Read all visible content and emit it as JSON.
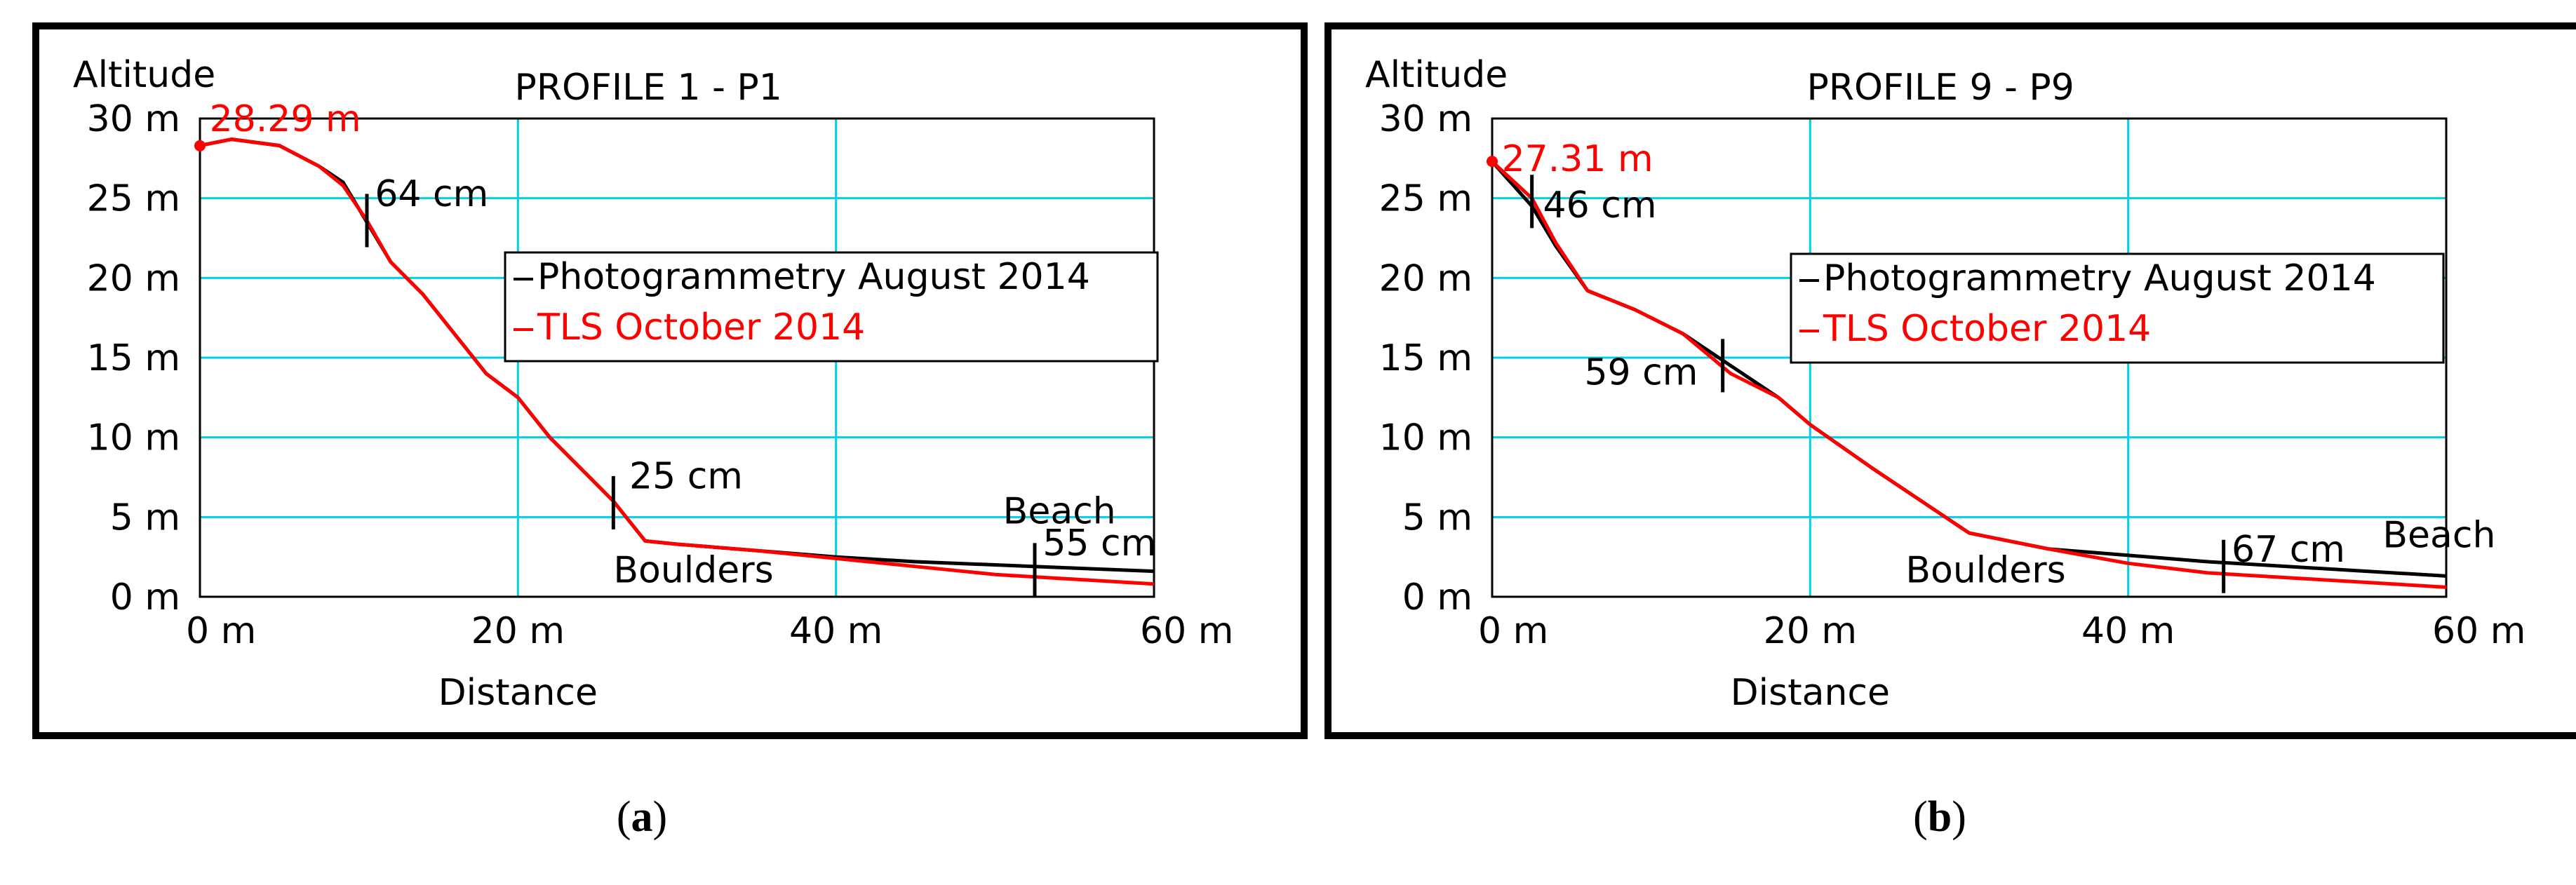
{
  "captions": [
    {
      "open": "(",
      "letter": "a",
      "close": ")"
    },
    {
      "open": "(",
      "letter": "b",
      "close": ")"
    }
  ],
  "colors": {
    "photogrammetry": "#000000",
    "tls": "#ff0000",
    "grid": "#00d0e8",
    "frame": "#000000"
  },
  "chart_data": [
    {
      "type": "line",
      "title": "PROFILE 1 - P1",
      "xlabel": "Distance",
      "ylabel": "Altitude",
      "xlim": [
        0,
        60
      ],
      "ylim": [
        0,
        30
      ],
      "xticks": [
        {
          "v": 0,
          "label": "0 m"
        },
        {
          "v": 20,
          "label": "20 m"
        },
        {
          "v": 40,
          "label": "40 m"
        },
        {
          "v": 60,
          "label": "60 m"
        }
      ],
      "yticks": [
        {
          "v": 0,
          "label": "0 m"
        },
        {
          "v": 5,
          "label": "5 m"
        },
        {
          "v": 10,
          "label": "10 m"
        },
        {
          "v": 15,
          "label": "15 m"
        },
        {
          "v": 20,
          "label": "20 m"
        },
        {
          "v": 25,
          "label": "25 m"
        },
        {
          "v": 30,
          "label": "30 m"
        }
      ],
      "grid": true,
      "legend_position": "upper-right",
      "series": [
        {
          "name": "Photogrammetry August 2014",
          "color": "#000000",
          "points": [
            [
              0,
              28.3
            ],
            [
              2,
              28.7
            ],
            [
              5,
              28.3
            ],
            [
              7.5,
              27
            ],
            [
              9,
              26
            ],
            [
              10.5,
              23.5
            ],
            [
              12,
              21
            ],
            [
              14,
              19
            ],
            [
              16,
              16.5
            ],
            [
              18,
              14
            ],
            [
              20,
              12.5
            ],
            [
              22,
              10
            ],
            [
              24,
              8
            ],
            [
              26,
              6
            ],
            [
              28,
              3.5
            ],
            [
              30,
              3.3
            ],
            [
              35,
              2.9
            ],
            [
              40,
              2.5
            ],
            [
              45,
              2.2
            ],
            [
              50,
              2.0
            ],
            [
              55,
              1.8
            ],
            [
              60,
              1.6
            ]
          ]
        },
        {
          "name": "TLS October 2014",
          "color": "#ff0000",
          "points": [
            [
              0,
              28.3
            ],
            [
              2,
              28.7
            ],
            [
              5,
              28.3
            ],
            [
              7.5,
              27
            ],
            [
              9,
              25.8
            ],
            [
              10.5,
              23.6
            ],
            [
              12,
              21
            ],
            [
              14,
              19
            ],
            [
              16,
              16.5
            ],
            [
              18,
              14
            ],
            [
              20,
              12.5
            ],
            [
              22,
              10
            ],
            [
              24,
              8
            ],
            [
              26,
              6
            ],
            [
              28,
              3.5
            ],
            [
              30,
              3.3
            ],
            [
              35,
              2.9
            ],
            [
              40,
              2.4
            ],
            [
              45,
              1.9
            ],
            [
              50,
              1.4
            ],
            [
              55,
              1.1
            ],
            [
              60,
              0.8
            ]
          ]
        }
      ],
      "markers": [
        {
          "x": 0,
          "y": 28.29,
          "color": "#ff0000"
        }
      ],
      "ticks": [
        {
          "x": 10.5,
          "y": 23.6
        },
        {
          "x": 26,
          "y": 5.9
        },
        {
          "x": 52.5,
          "y": 1.7
        }
      ],
      "annotations": [
        {
          "text": "28.29 m",
          "x": 0.6,
          "y": 29.2,
          "color": "#ff0000"
        },
        {
          "text": "64 cm",
          "x": 11,
          "y": 24.5,
          "color": "#000000"
        },
        {
          "text": "25 cm",
          "x": 27,
          "y": 6.8,
          "color": "#000000"
        },
        {
          "text": "Beach",
          "x": 50.5,
          "y": 4.6,
          "color": "#000000"
        },
        {
          "text": "55 cm",
          "x": 53,
          "y": 2.6,
          "color": "#000000"
        },
        {
          "text": "Boulders",
          "x": 26,
          "y": 0.9,
          "color": "#000000"
        }
      ]
    },
    {
      "type": "line",
      "title": "PROFILE 9 - P9",
      "xlabel": "Distance",
      "ylabel": "Altitude",
      "xlim": [
        0,
        60
      ],
      "ylim": [
        0,
        30
      ],
      "xticks": [
        {
          "v": 0,
          "label": "0 m"
        },
        {
          "v": 20,
          "label": "20 m"
        },
        {
          "v": 40,
          "label": "40 m"
        },
        {
          "v": 60,
          "label": "60 m"
        }
      ],
      "yticks": [
        {
          "v": 0,
          "label": "0 m"
        },
        {
          "v": 5,
          "label": "5 m"
        },
        {
          "v": 10,
          "label": "10 m"
        },
        {
          "v": 15,
          "label": "15 m"
        },
        {
          "v": 20,
          "label": "20 m"
        },
        {
          "v": 25,
          "label": "25 m"
        },
        {
          "v": 30,
          "label": "30 m"
        }
      ],
      "grid": true,
      "legend_position": "upper-right",
      "series": [
        {
          "name": "Photogrammetry August 2014",
          "color": "#000000",
          "points": [
            [
              0,
              27.3
            ],
            [
              2.5,
              24.5
            ],
            [
              4,
              22
            ],
            [
              6,
              19.2
            ],
            [
              9,
              18
            ],
            [
              12,
              16.5
            ],
            [
              15,
              14.5
            ],
            [
              18,
              12.5
            ],
            [
              20,
              10.8
            ],
            [
              24,
              8
            ],
            [
              27,
              6
            ],
            [
              30,
              4
            ],
            [
              35,
              3
            ],
            [
              40,
              2.6
            ],
            [
              45,
              2.2
            ],
            [
              50,
              1.9
            ],
            [
              55,
              1.6
            ],
            [
              60,
              1.3
            ]
          ]
        },
        {
          "name": "TLS October 2014",
          "color": "#ff0000",
          "points": [
            [
              0,
              27.3
            ],
            [
              2.5,
              25
            ],
            [
              4,
              22.2
            ],
            [
              6,
              19.2
            ],
            [
              9,
              18
            ],
            [
              12,
              16.5
            ],
            [
              15,
              14
            ],
            [
              18,
              12.5
            ],
            [
              20,
              10.8
            ],
            [
              24,
              8
            ],
            [
              27,
              6
            ],
            [
              30,
              4
            ],
            [
              35,
              3
            ],
            [
              40,
              2.1
            ],
            [
              45,
              1.5
            ],
            [
              50,
              1.2
            ],
            [
              55,
              0.9
            ],
            [
              60,
              0.6
            ]
          ]
        }
      ],
      "markers": [
        {
          "x": 0,
          "y": 27.31,
          "color": "#ff0000"
        }
      ],
      "ticks": [
        {
          "x": 2.5,
          "y": 24.8
        },
        {
          "x": 14.5,
          "y": 14.5
        },
        {
          "x": 46,
          "y": 1.9
        }
      ],
      "annotations": [
        {
          "text": "27.31 m",
          "x": 0.6,
          "y": 26.7,
          "color": "#ff0000"
        },
        {
          "text": "46 cm",
          "x": 3.2,
          "y": 23.8,
          "color": "#000000"
        },
        {
          "text": "59 cm",
          "x": 5.8,
          "y": 13.3,
          "color": "#000000"
        },
        {
          "text": "67 cm",
          "x": 46.5,
          "y": 2.2,
          "color": "#000000"
        },
        {
          "text": "Beach",
          "x": 56,
          "y": 3.1,
          "color": "#000000"
        },
        {
          "text": "Boulders",
          "x": 26,
          "y": 0.9,
          "color": "#000000"
        }
      ]
    }
  ]
}
